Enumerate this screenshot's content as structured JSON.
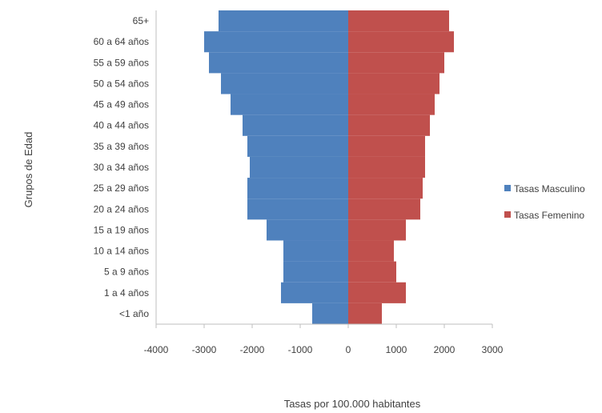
{
  "chart_data": {
    "type": "bar",
    "orientation": "horizontal",
    "layout": "population-pyramid",
    "categories": [
      "<1 año",
      "1 a 4 años",
      "5 a 9 años",
      "10 a 14 años",
      "15 a 19 años",
      "20 a 24 años",
      "25 a 29 años",
      "30 a 34 años",
      "35 a 39 años",
      "40 a 44 años",
      "45 a 49 años",
      "50 a 54 años",
      "55 a 59 años",
      "60 a 64 años",
      "65+"
    ],
    "series": [
      {
        "name": "Tasas Masculino",
        "color": "#4f81bd",
        "values": [
          -750,
          -1400,
          -1350,
          -1350,
          -1700,
          -2100,
          -2100,
          -2050,
          -2100,
          -2200,
          -2450,
          -2650,
          -2900,
          -3000,
          -2700
        ]
      },
      {
        "name": "Tasas Femenino",
        "color": "#c0504d",
        "values": [
          700,
          1200,
          1000,
          950,
          1200,
          1500,
          1550,
          1600,
          1600,
          1700,
          1800,
          1900,
          2000,
          2200,
          2100
        ]
      }
    ],
    "xlim": [
      -4000,
      3000
    ],
    "xticks": [
      -4000,
      -3000,
      -2000,
      -1000,
      0,
      1000,
      2000,
      3000
    ],
    "xtick_labels": [
      "-4000",
      "-3000",
      "-2000",
      "-1000",
      "0",
      "1000",
      "2000",
      "3000"
    ],
    "xlabel": "Tasas por 100.000 habitantes",
    "ylabel": "Grupos de Edad",
    "grid": false,
    "legend_position": "right"
  }
}
